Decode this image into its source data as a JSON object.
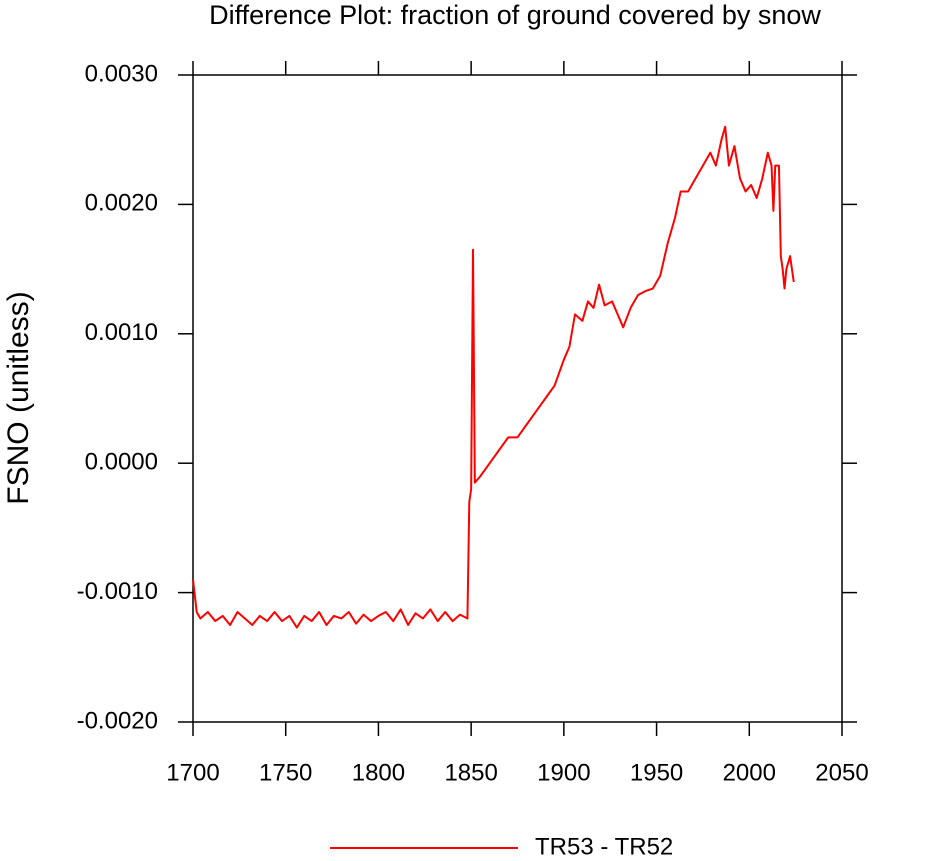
{
  "chart_data": {
    "type": "line",
    "title": "Difference Plot: fraction of ground covered by snow",
    "y_label": "FSNO  (unitless)",
    "x": [
      1700,
      1702,
      1704,
      1708,
      1712,
      1716,
      1720,
      1724,
      1728,
      1732,
      1736,
      1740,
      1744,
      1748,
      1752,
      1756,
      1760,
      1764,
      1768,
      1772,
      1776,
      1780,
      1784,
      1788,
      1792,
      1796,
      1800,
      1804,
      1808,
      1812,
      1816,
      1820,
      1824,
      1828,
      1832,
      1836,
      1840,
      1844,
      1848,
      1849,
      1850,
      1851,
      1852,
      1855,
      1860,
      1865,
      1870,
      1875,
      1880,
      1885,
      1890,
      1895,
      1900,
      1903,
      1906,
      1910,
      1913,
      1916,
      1919,
      1922,
      1926,
      1929,
      1932,
      1936,
      1940,
      1944,
      1948,
      1952,
      1956,
      1960,
      1963,
      1967,
      1971,
      1975,
      1979,
      1982,
      1985,
      1987,
      1989,
      1992,
      1995,
      1998,
      2001,
      2004,
      2007,
      2010,
      2012,
      2013,
      2014,
      2016,
      2017,
      2018,
      2019,
      2020,
      2022,
      2024
    ],
    "series": [
      {
        "name": "TR53 - TR52",
        "color": "#ff0000",
        "values": [
          -0.0009,
          -0.00115,
          -0.0012,
          -0.00115,
          -0.00122,
          -0.00118,
          -0.00125,
          -0.00115,
          -0.0012,
          -0.00125,
          -0.00118,
          -0.00122,
          -0.00115,
          -0.00122,
          -0.00118,
          -0.00127,
          -0.00118,
          -0.00122,
          -0.00115,
          -0.00125,
          -0.00118,
          -0.0012,
          -0.00115,
          -0.00124,
          -0.00117,
          -0.00122,
          -0.00118,
          -0.00115,
          -0.00122,
          -0.00113,
          -0.00125,
          -0.00116,
          -0.0012,
          -0.00113,
          -0.00122,
          -0.00115,
          -0.00122,
          -0.00117,
          -0.0012,
          -0.0003,
          -0.0002,
          0.00165,
          -0.00015,
          -0.0001,
          0.0,
          0.0001,
          0.0002,
          0.0002,
          0.0003,
          0.0004,
          0.0005,
          0.0006,
          0.0008,
          0.0009,
          0.00115,
          0.0011,
          0.00125,
          0.0012,
          0.00138,
          0.00122,
          0.00125,
          0.00115,
          0.00105,
          0.0012,
          0.0013,
          0.00133,
          0.00135,
          0.00145,
          0.0017,
          0.0019,
          0.0021,
          0.0021,
          0.0022,
          0.0023,
          0.0024,
          0.0023,
          0.0025,
          0.0026,
          0.0023,
          0.00245,
          0.0022,
          0.0021,
          0.00215,
          0.00205,
          0.0022,
          0.0024,
          0.0023,
          0.00195,
          0.0023,
          0.0023,
          0.0016,
          0.0015,
          0.00135,
          0.0015,
          0.0016,
          0.0014
        ]
      }
    ],
    "xlim": [
      1700,
      2050
    ],
    "xticks": [
      1700,
      1750,
      1800,
      1850,
      1900,
      1950,
      2000,
      2050
    ],
    "ylim": [
      -0.002,
      0.003
    ],
    "yticks": [
      {
        "value": -0.002,
        "label": "-0.0020"
      },
      {
        "value": -0.001,
        "label": "-0.0010"
      },
      {
        "value": 0,
        "label": "0.0000"
      },
      {
        "value": 0.001,
        "label": "0.0010"
      },
      {
        "value": 0.002,
        "label": "0.0020"
      },
      {
        "value": 0.003,
        "label": "0.0030"
      }
    ],
    "legend": "bottom"
  }
}
